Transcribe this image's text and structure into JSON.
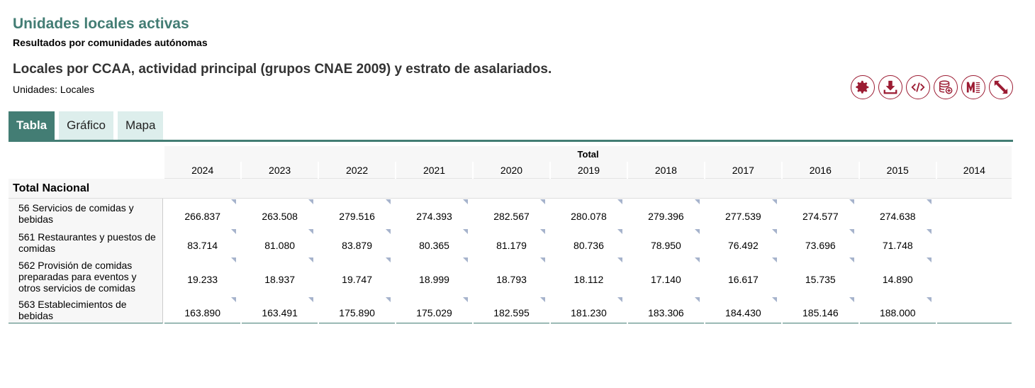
{
  "header": {
    "title": "Unidades locales activas",
    "subtitle": "Resultados por comunidades autónomas",
    "table_title": "Locales por CCAA, actividad principal (grupos CNAE 2009) y estrato de asalariados.",
    "units": "Unidades:  Locales"
  },
  "tools": [
    {
      "icon": "gear-icon"
    },
    {
      "icon": "download-icon"
    },
    {
      "icon": "code-icon"
    },
    {
      "icon": "database-add-icon"
    },
    {
      "icon": "metadata-icon"
    },
    {
      "icon": "expand-icon"
    }
  ],
  "tabs": [
    {
      "label": "Tabla",
      "active": true
    },
    {
      "label": "Gráfico"
    },
    {
      "label": "Mapa"
    }
  ],
  "table": {
    "group_header": "Total",
    "years": [
      "2024",
      "2023",
      "2022",
      "2021",
      "2020",
      "2019",
      "2018",
      "2017",
      "2016",
      "2015",
      "2014"
    ],
    "section": "Total Nacional",
    "rows": [
      {
        "label": "56 Servicios de comidas y bebidas",
        "values": [
          "266.837",
          "263.508",
          "279.516",
          "274.393",
          "282.567",
          "280.078",
          "279.396",
          "277.539",
          "274.577",
          "274.638",
          ""
        ]
      },
      {
        "label": "561 Restaurantes y puestos de comidas",
        "values": [
          "83.714",
          "81.080",
          "83.879",
          "80.365",
          "81.179",
          "80.736",
          "78.950",
          "76.492",
          "73.696",
          "71.748",
          ""
        ]
      },
      {
        "label": "562 Provisión de comidas preparadas para eventos y otros servicios de comidas",
        "values": [
          "19.233",
          "18.937",
          "19.747",
          "18.999",
          "18.793",
          "18.112",
          "17.140",
          "16.617",
          "15.735",
          "14.890",
          ""
        ]
      },
      {
        "label": "563 Establecimientos de bebidas",
        "values": [
          "163.890",
          "163.491",
          "175.890",
          "175.029",
          "182.595",
          "181.230",
          "183.306",
          "184.430",
          "185.146",
          "188.000",
          ""
        ]
      }
    ]
  }
}
